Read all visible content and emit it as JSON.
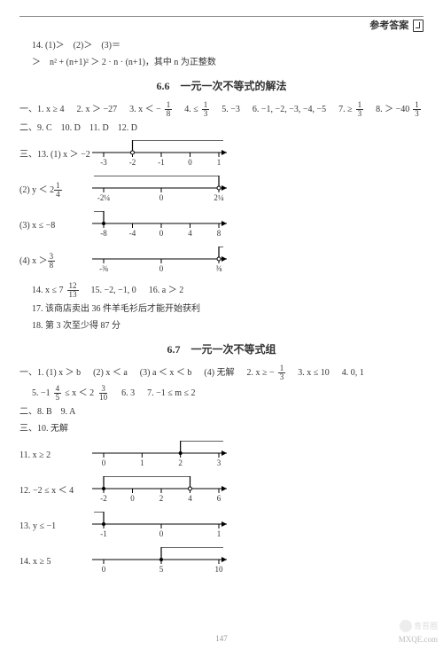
{
  "header": {
    "label": "参考答案"
  },
  "lines": {
    "l14a": "14. (1)＞　(2)＞　(3)＝",
    "l14b_prefix": "＞　n² + (n+1)² ＞ 2 · n · (n+1)，其中 n 为正整数",
    "sec66": "6.6　一元一次不等式的解法",
    "s66_1": [
      "一、1. x ≥ 4",
      "　2. x ＞ −27",
      "　3. x ＜ −",
      "　4. ≤",
      "　5. −3",
      "　6. −1, −2, −3, −4, −5",
      "　7. ≥",
      "　8. ＞ −40"
    ],
    "s66_2": "二、9. C　10. D　11. D　12. D",
    "s66_3a": "三、13. (1) x ＞ −2",
    "s66_3b": "(2) y ＜ 2",
    "s66_3c": "(3) x ≤ −8",
    "s66_3d": "(4) x ＞",
    "s66_14": [
      "14. x ≤ 7",
      "　15. −2, −1, 0",
      "　16. a ＞ 2"
    ],
    "s66_17": "17. 该商店卖出 36 件羊毛衫后才能开始获利",
    "s66_18": "18. 第 3 次至少得 87 分",
    "sec67": "6.7　一元一次不等式组",
    "s67_1": [
      "一、1. (1) x ＞ b",
      "　(2) x ＜ a",
      "　(3) a ＜ x ＜ b",
      "　(4) 无解",
      "　2. x ≥ −",
      "　3. x ≤ 10",
      "　4. 0, 1"
    ],
    "s67_5": [
      "5. −1",
      " ≤ x ＜ 2",
      "　6. 3",
      "　7. −1 ≤ m ≤ 2"
    ],
    "s67_2": "二、8. B　9. A",
    "s67_3": "三、10. 无解",
    "s67_11": "11. x ≥ 2",
    "s67_12": "12. −2 ≤ x ＜ 4",
    "s67_13": "13. y ≤ −1",
    "s67_14": "14. x ≥ 5"
  },
  "fractions": {
    "f1_8": {
      "n": "1",
      "d": "8"
    },
    "f1_3": {
      "n": "1",
      "d": "3"
    },
    "f1_4": {
      "n": "1",
      "d": "4"
    },
    "f3_8": {
      "n": "3",
      "d": "8"
    },
    "f12_13": {
      "n": "12",
      "d": "13"
    },
    "f4_5": {
      "n": "4",
      "d": "5"
    },
    "f3_10": {
      "n": "3",
      "d": "10"
    }
  },
  "numberlines": {
    "nl1": {
      "ticks": [
        "-3",
        "-2",
        "-1",
        "0",
        "1"
      ],
      "openAt": 1,
      "dir": "right",
      "open": true
    },
    "nl2": {
      "ticks": [
        "-2¼",
        "0",
        "2¼"
      ],
      "openAt": 2,
      "dir": "left",
      "open": true
    },
    "nl3": {
      "ticks": [
        "-8",
        "-4",
        "0",
        "4",
        "8"
      ],
      "openAt": 0,
      "dir": "left",
      "open": false
    },
    "nl4": {
      "ticks": [
        "-⅜",
        "0",
        "⅜"
      ],
      "openAt": 2,
      "dir": "right",
      "open": true
    },
    "nl11": {
      "ticks": [
        "0",
        "1",
        "2",
        "3"
      ],
      "openAt": 2,
      "dir": "right",
      "open": false
    },
    "nl12": {
      "ticks": [
        "-2",
        "0",
        "2",
        "4",
        "6"
      ],
      "openAt": 0,
      "endAt": 3,
      "dir": "between",
      "openLeft": false,
      "openRight": true
    },
    "nl13": {
      "ticks": [
        "-1",
        "0",
        "1"
      ],
      "openAt": 0,
      "dir": "left",
      "open": false
    },
    "nl14": {
      "ticks": [
        "0",
        "5",
        "10"
      ],
      "openAt": 1,
      "dir": "right",
      "open": false
    }
  },
  "styling": {
    "line_color": "#000",
    "bracket_height": 14,
    "tick_height": 5,
    "axis_width": 150,
    "font_size": 10
  },
  "pagenum": "147",
  "watermark": {
    "brand": "青苔圈",
    "url": "MXQE.com"
  }
}
